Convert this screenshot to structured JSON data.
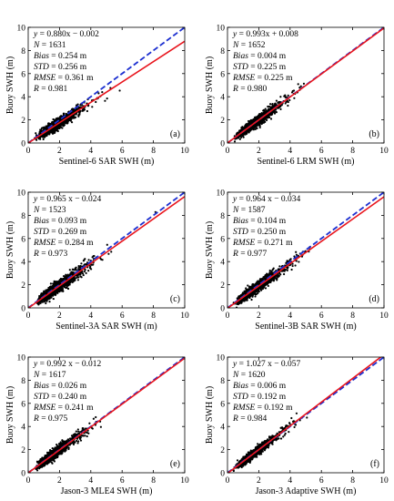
{
  "figure": {
    "colors": {
      "scatter": "#000000",
      "fit_line": "#e8141c",
      "identity_line": "#1c2fd0",
      "axes": "#000000"
    }
  },
  "chart_data": [
    {
      "type": "scatter",
      "panel_label": "(a)",
      "xlabel": "Sentinel-6 SAR SWH (m)",
      "ylabel": "Buoy SWH (m)",
      "xlim": [
        0,
        10
      ],
      "ylim": [
        0,
        10
      ],
      "xticks": [
        "0",
        "2",
        "4",
        "6",
        "8",
        "10"
      ],
      "yticks": [
        "0",
        "2",
        "4",
        "6",
        "8",
        "10"
      ],
      "grid": false,
      "fit": {
        "slope": 0.88,
        "intercept": -0.002
      },
      "stats": [
        {
          "name": "y",
          "value": " = 0.880x − 0.002"
        },
        {
          "name": "N",
          "value": " = 1631"
        },
        {
          "name": "Bias",
          "value": " = 0.254 m"
        },
        {
          "name": "STD",
          "value": " = 0.256 m"
        },
        {
          "name": "RMSE",
          "value": " = 0.361 m"
        },
        {
          "name": "R",
          "value": " = 0.981"
        }
      ],
      "scatter": {
        "n": 1631,
        "x_mean": 1.6,
        "x_sigma": 0.85,
        "noise_sd": 0.24,
        "x_max": 6.2
      }
    },
    {
      "type": "scatter",
      "panel_label": "(b)",
      "xlabel": "Sentinel-6 LRM SWH (m)",
      "ylabel": "Buoy SWH (m)",
      "xlim": [
        0,
        10
      ],
      "ylim": [
        0,
        10
      ],
      "xticks": [
        "0",
        "2",
        "4",
        "6",
        "8",
        "10"
      ],
      "yticks": [
        "0",
        "2",
        "4",
        "6",
        "8",
        "10"
      ],
      "grid": false,
      "fit": {
        "slope": 0.993,
        "intercept": 0.008
      },
      "stats": [
        {
          "name": "y",
          "value": " = 0.993x + 0.008"
        },
        {
          "name": "N",
          "value": " = 1652"
        },
        {
          "name": "Bias",
          "value": " = 0.004 m"
        },
        {
          "name": "STD",
          "value": " = 0.225 m"
        },
        {
          "name": "RMSE",
          "value": " = 0.225 m"
        },
        {
          "name": "R",
          "value": " = 0.980"
        }
      ],
      "scatter": {
        "n": 1652,
        "x_mean": 1.6,
        "x_sigma": 0.85,
        "noise_sd": 0.22,
        "x_max": 7.8
      }
    },
    {
      "type": "scatter",
      "panel_label": "(c)",
      "xlabel": "Sentinel-3A SAR SWH (m)",
      "ylabel": "Buoy SWH (m)",
      "xlim": [
        0,
        10
      ],
      "ylim": [
        0,
        10
      ],
      "xticks": [
        "0",
        "2",
        "4",
        "6",
        "8",
        "10"
      ],
      "yticks": [
        "0",
        "2",
        "4",
        "6",
        "8",
        "10"
      ],
      "grid": false,
      "fit": {
        "slope": 0.965,
        "intercept": -0.024
      },
      "stats": [
        {
          "name": "y",
          "value": " = 0.965 x − 0.024"
        },
        {
          "name": "N",
          "value": " = 1523"
        },
        {
          "name": "Bias",
          "value": " = 0.093 m"
        },
        {
          "name": "STD",
          "value": " = 0.269 m"
        },
        {
          "name": "RMSE",
          "value": " = 0.284 m"
        },
        {
          "name": "R",
          "value": " = 0.973"
        }
      ],
      "scatter": {
        "n": 1523,
        "x_mean": 1.7,
        "x_sigma": 0.9,
        "noise_sd": 0.26,
        "x_max": 8.4
      }
    },
    {
      "type": "scatter",
      "panel_label": "(d)",
      "xlabel": "Sentinel-3B SAR SWH (m)",
      "ylabel": "Buoy SWH (m)",
      "xlim": [
        0,
        10
      ],
      "ylim": [
        0,
        10
      ],
      "xticks": [
        "0",
        "2",
        "4",
        "6",
        "8",
        "10"
      ],
      "yticks": [
        "0",
        "2",
        "4",
        "6",
        "8",
        "10"
      ],
      "grid": false,
      "fit": {
        "slope": 0.964,
        "intercept": -0.034
      },
      "stats": [
        {
          "name": "y",
          "value": " = 0.964 x − 0.034"
        },
        {
          "name": "N",
          "value": " = 1587"
        },
        {
          "name": "Bias",
          "value": " = 0.104 m"
        },
        {
          "name": "STD",
          "value": " = 0.250 m"
        },
        {
          "name": "RMSE",
          "value": " = 0.271 m"
        },
        {
          "name": "R",
          "value": " = 0.977"
        }
      ],
      "scatter": {
        "n": 1587,
        "x_mean": 1.7,
        "x_sigma": 0.9,
        "noise_sd": 0.24,
        "x_max": 8.2
      }
    },
    {
      "type": "scatter",
      "panel_label": "(e)",
      "xlabel": "Jason-3 MLE4 SWH (m)",
      "ylabel": "Buoy SWH (m)",
      "xlim": [
        0,
        10
      ],
      "ylim": [
        0,
        10
      ],
      "xticks": [
        "0",
        "2",
        "4",
        "6",
        "8",
        "10"
      ],
      "yticks": [
        "0",
        "2",
        "4",
        "6",
        "8",
        "10"
      ],
      "grid": false,
      "fit": {
        "slope": 0.992,
        "intercept": -0.012
      },
      "stats": [
        {
          "name": "y",
          "value": " = 0.992 x − 0.012"
        },
        {
          "name": "N",
          "value": " = 1617"
        },
        {
          "name": "Bias",
          "value": " = 0.026 m"
        },
        {
          "name": "STD",
          "value": " = 0.240 m"
        },
        {
          "name": "RMSE",
          "value": " = 0.241 m"
        },
        {
          "name": "R",
          "value": " = 0.975"
        }
      ],
      "scatter": {
        "n": 1617,
        "x_mean": 1.5,
        "x_sigma": 0.85,
        "noise_sd": 0.23,
        "x_max": 6.4
      }
    },
    {
      "type": "scatter",
      "panel_label": "(f)",
      "xlabel": "Jason-3 Adaptive SWH (m)",
      "ylabel": "Buoy SWH (m)",
      "xlim": [
        0,
        10
      ],
      "ylim": [
        0,
        10
      ],
      "xticks": [
        "0",
        "2",
        "4",
        "6",
        "8",
        "10"
      ],
      "yticks": [
        "0",
        "2",
        "4",
        "6",
        "8",
        "10"
      ],
      "grid": false,
      "fit": {
        "slope": 1.027,
        "intercept": -0.057
      },
      "stats": [
        {
          "name": "y",
          "value": " = 1.027 x − 0.057"
        },
        {
          "name": "N",
          "value": " = 1620"
        },
        {
          "name": "Bias",
          "value": " = 0.006 m"
        },
        {
          "name": "STD",
          "value": " = 0.192 m"
        },
        {
          "name": "RMSE",
          "value": " = 0.192 m"
        },
        {
          "name": "R",
          "value": " = 0.984"
        }
      ],
      "scatter": {
        "n": 1620,
        "x_mean": 1.5,
        "x_sigma": 0.85,
        "noise_sd": 0.19,
        "x_max": 6.6
      }
    }
  ]
}
